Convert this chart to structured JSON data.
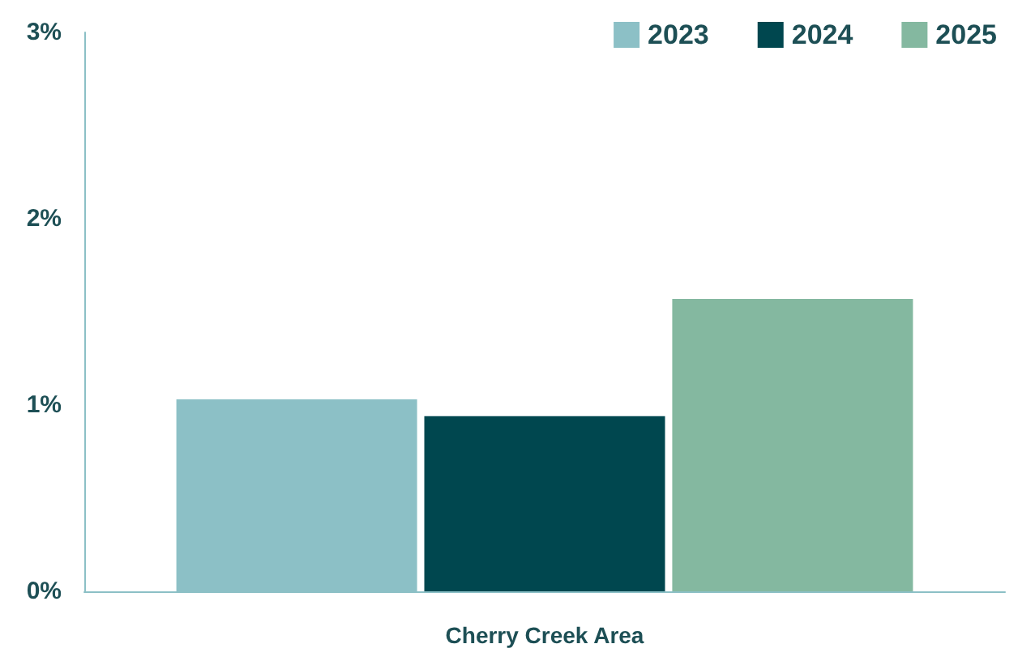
{
  "chart_data": {
    "type": "bar",
    "categories": [
      "Cherry Creek Area"
    ],
    "series": [
      {
        "name": "2023",
        "color": "#8cc0c6",
        "values": [
          1.03
        ]
      },
      {
        "name": "2024",
        "color": "#00474f",
        "values": [
          0.94
        ]
      },
      {
        "name": "2025",
        "color": "#84b8a0",
        "values": [
          1.57
        ]
      }
    ],
    "ylim": [
      0,
      3
    ],
    "yticks": [
      {
        "value": 0,
        "label": "0%"
      },
      {
        "value": 1,
        "label": "1%"
      },
      {
        "value": 2,
        "label": "2%"
      },
      {
        "value": 3,
        "label": "3%"
      }
    ],
    "grid": false,
    "legend": "top right"
  }
}
